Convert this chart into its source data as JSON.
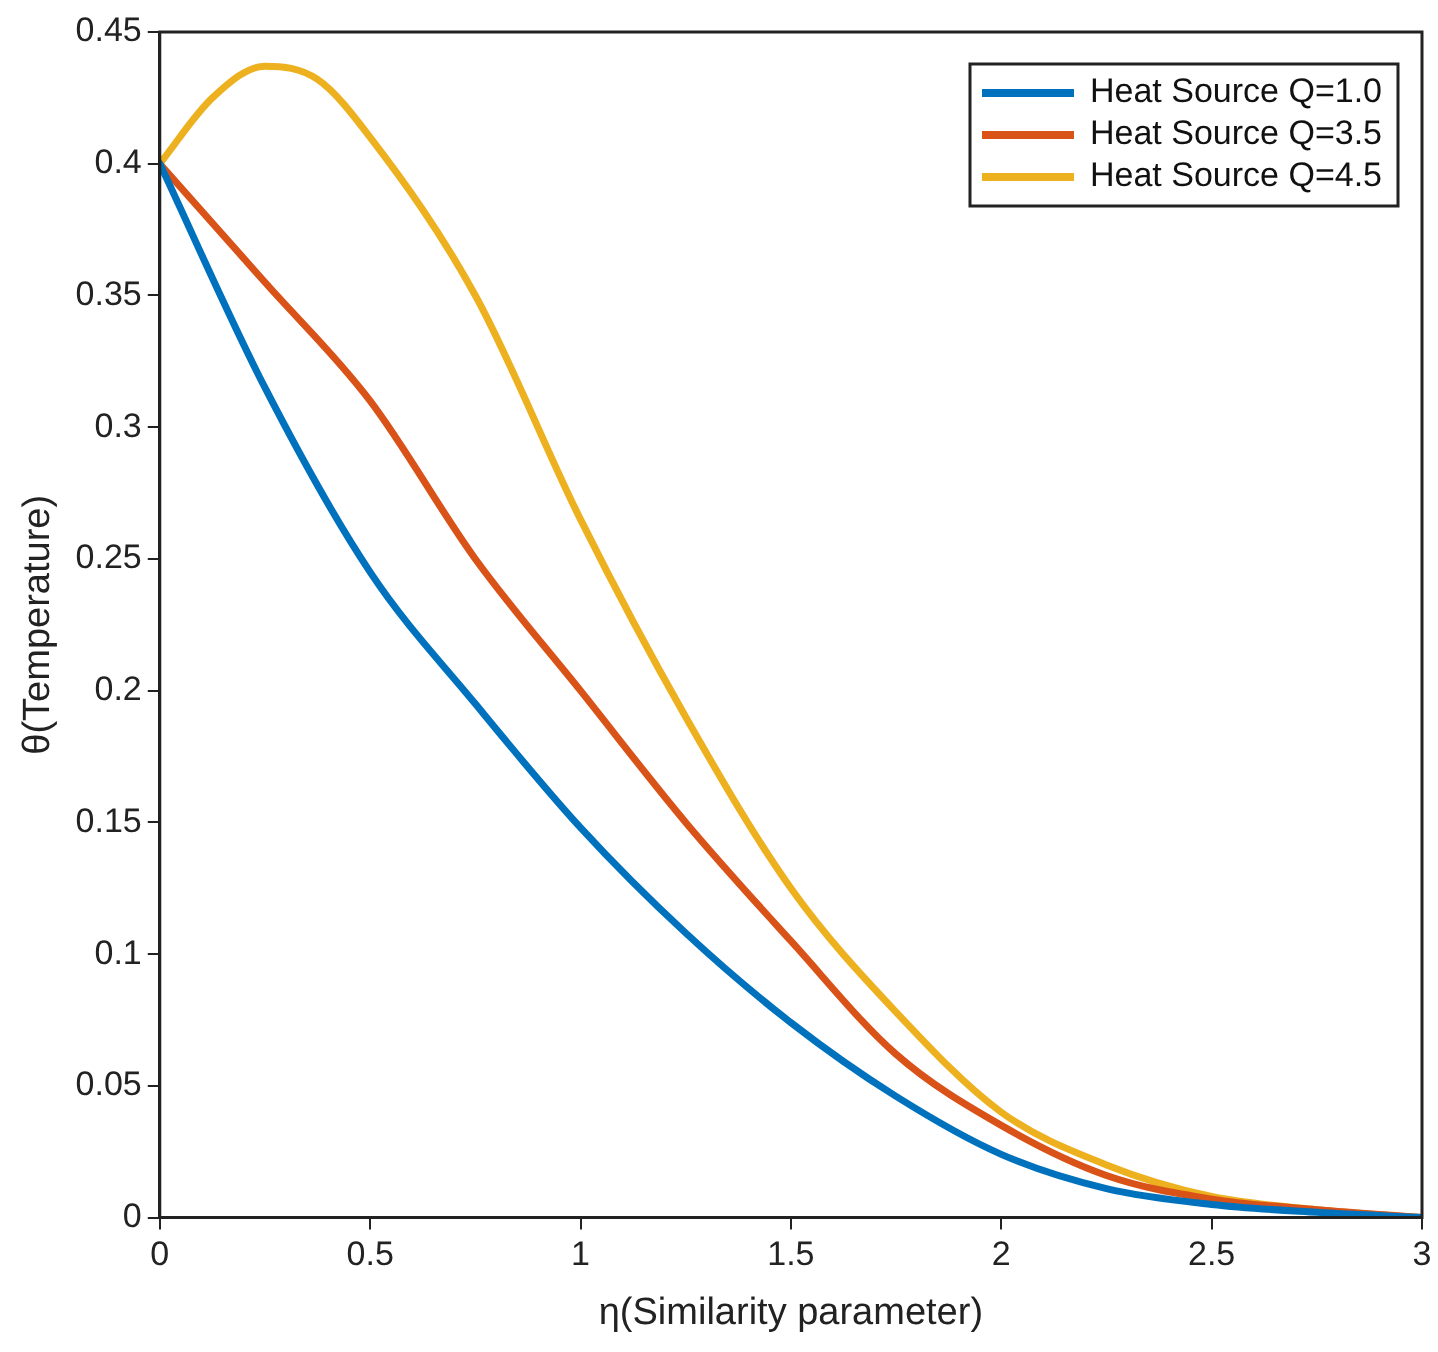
{
  "chart_data": {
    "type": "line",
    "xlabel": "η(Similarity parameter)",
    "ylabel": "θ(Temperature)",
    "xlim": [
      0,
      3
    ],
    "ylim": [
      0,
      0.45
    ],
    "xticks": [
      0,
      0.5,
      1,
      1.5,
      2,
      2.5,
      3
    ],
    "yticks": [
      0,
      0.05,
      0.1,
      0.15,
      0.2,
      0.25,
      0.3,
      0.35,
      0.4,
      0.45
    ],
    "grid": false,
    "legend": "top right",
    "marker": "none",
    "line_style": "solid",
    "series": [
      {
        "name": "Heat Source Q=1.0",
        "color": "#0072bd",
        "x": [
          0,
          0.25,
          0.5,
          0.75,
          1,
          1.25,
          1.5,
          1.75,
          2,
          2.25,
          2.5,
          2.75,
          3
        ],
        "values": [
          0.4,
          0.315,
          0.245,
          0.195,
          0.148,
          0.108,
          0.074,
          0.046,
          0.024,
          0.011,
          0.005,
          0.002,
          0
        ]
      },
      {
        "name": "Heat Source Q=3.5",
        "color": "#d95319",
        "x": [
          0,
          0.25,
          0.5,
          0.75,
          1,
          1.25,
          1.5,
          1.75,
          2,
          2.25,
          2.5,
          2.75,
          3
        ],
        "values": [
          0.4,
          0.355,
          0.31,
          0.25,
          0.2,
          0.15,
          0.105,
          0.062,
          0.035,
          0.016,
          0.007,
          0.003,
          0
        ]
      },
      {
        "name": "Heat Source Q=4.5",
        "color": "#edb120",
        "x": [
          0,
          0.125,
          0.25,
          0.375,
          0.5,
          0.75,
          1,
          1.25,
          1.5,
          1.75,
          2,
          2.25,
          2.5,
          2.75,
          3
        ],
        "values": [
          0.4,
          0.425,
          0.437,
          0.432,
          0.41,
          0.35,
          0.265,
          0.19,
          0.125,
          0.078,
          0.04,
          0.02,
          0.008,
          0.003,
          0
        ]
      }
    ]
  }
}
